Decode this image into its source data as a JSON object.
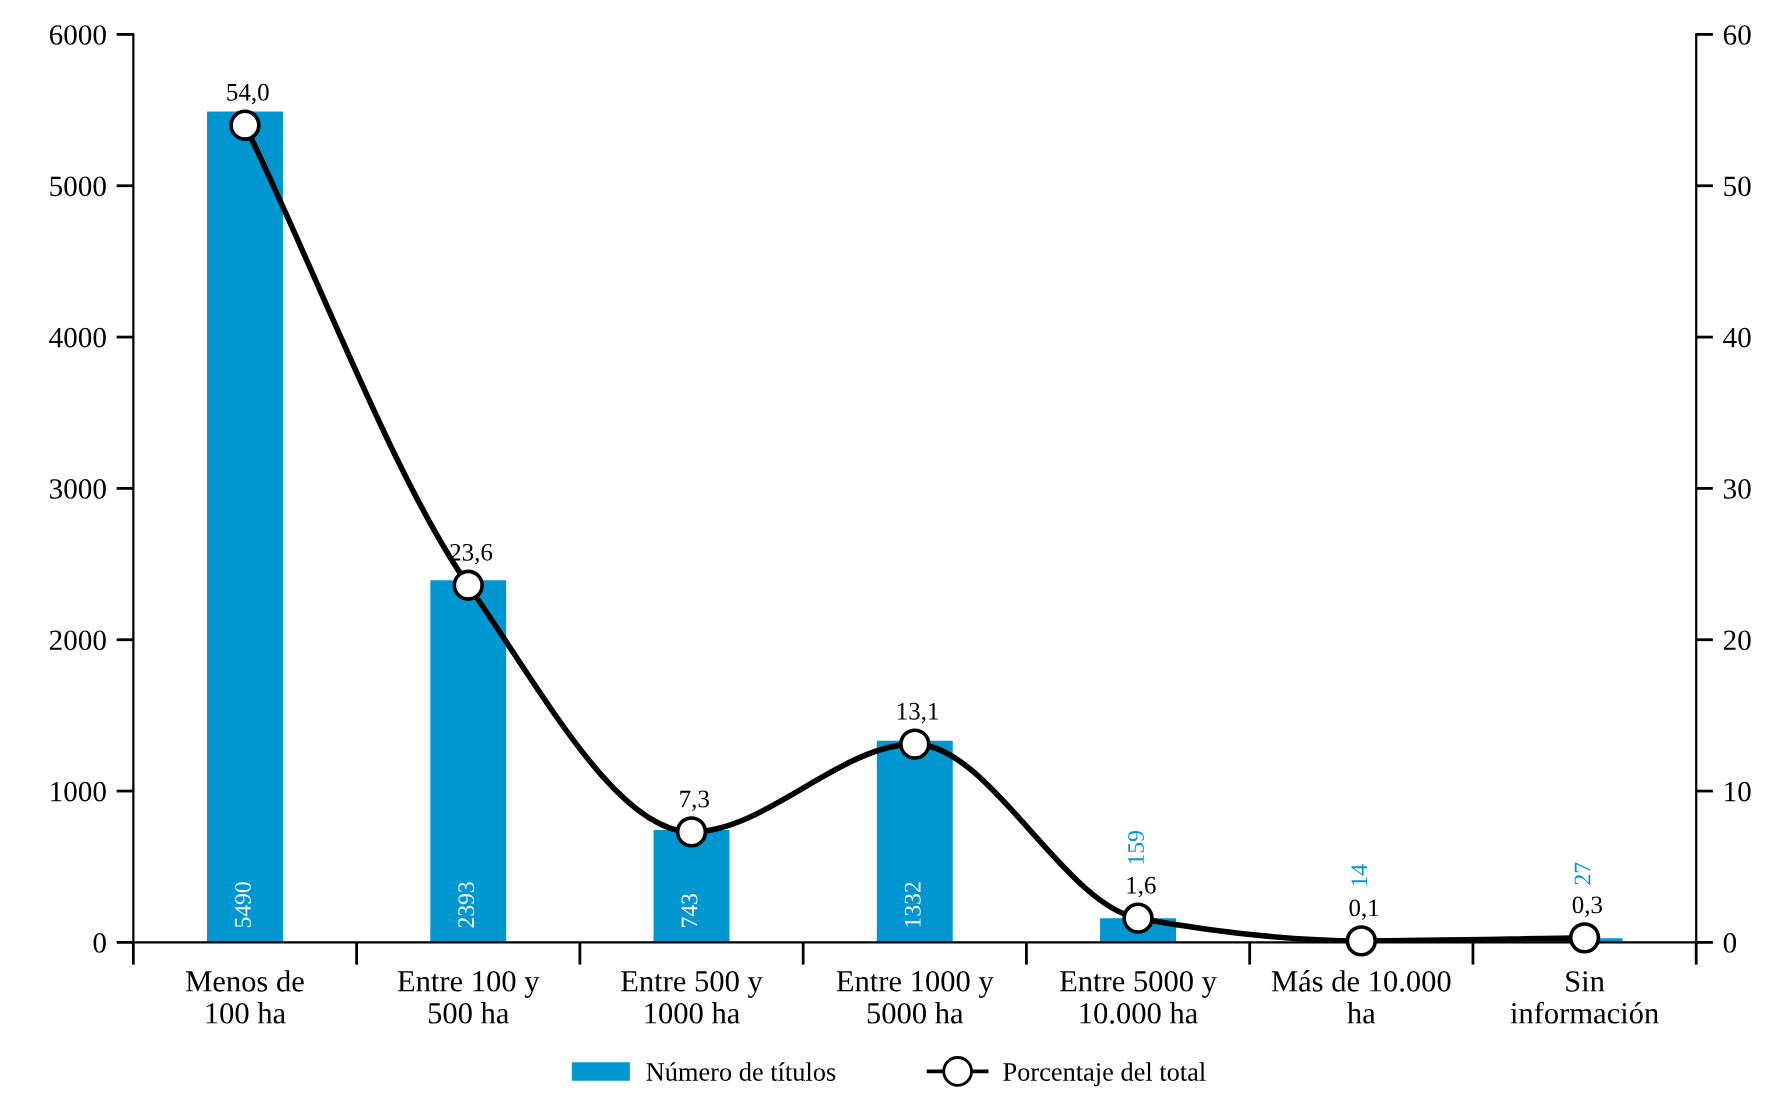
{
  "chart_data": {
    "type": "bar",
    "categories": [
      "Menos de\n100 ha",
      "Entre 100 y\n500 ha",
      "Entre 500 y\n1000 ha",
      "Entre 1000 y\n5000 ha",
      "Entre 5000 y\n10.000 ha",
      "Más de 10.000\nha",
      "Sin\ninformación"
    ],
    "series": [
      {
        "name": "Número de títulos",
        "color": "#0096d0",
        "values": [
          5490,
          2393,
          743,
          1332,
          159,
          14,
          27
        ],
        "value_labels": [
          "5490",
          "2393",
          "743",
          "1332",
          "159",
          "14",
          "27"
        ]
      },
      {
        "name": "Porcentaje del total",
        "type": "line",
        "axis": "y2",
        "color": "#000000",
        "values": [
          54.0,
          23.6,
          7.3,
          13.1,
          1.6,
          0.1,
          0.3
        ],
        "value_labels": [
          "54,0",
          "23,6",
          "7,3",
          "13,1",
          "1,6",
          "0,1",
          "0,3"
        ]
      }
    ],
    "ylim": [
      0,
      6000
    ],
    "yticks": [
      0,
      1000,
      2000,
      3000,
      4000,
      5000,
      6000
    ],
    "y2lim": [
      0,
      60
    ],
    "y2ticks": [
      0,
      10,
      20,
      30,
      40,
      50,
      60
    ],
    "legend": "bottom",
    "marker": "circle",
    "line_style": "solid",
    "grid": false
  }
}
